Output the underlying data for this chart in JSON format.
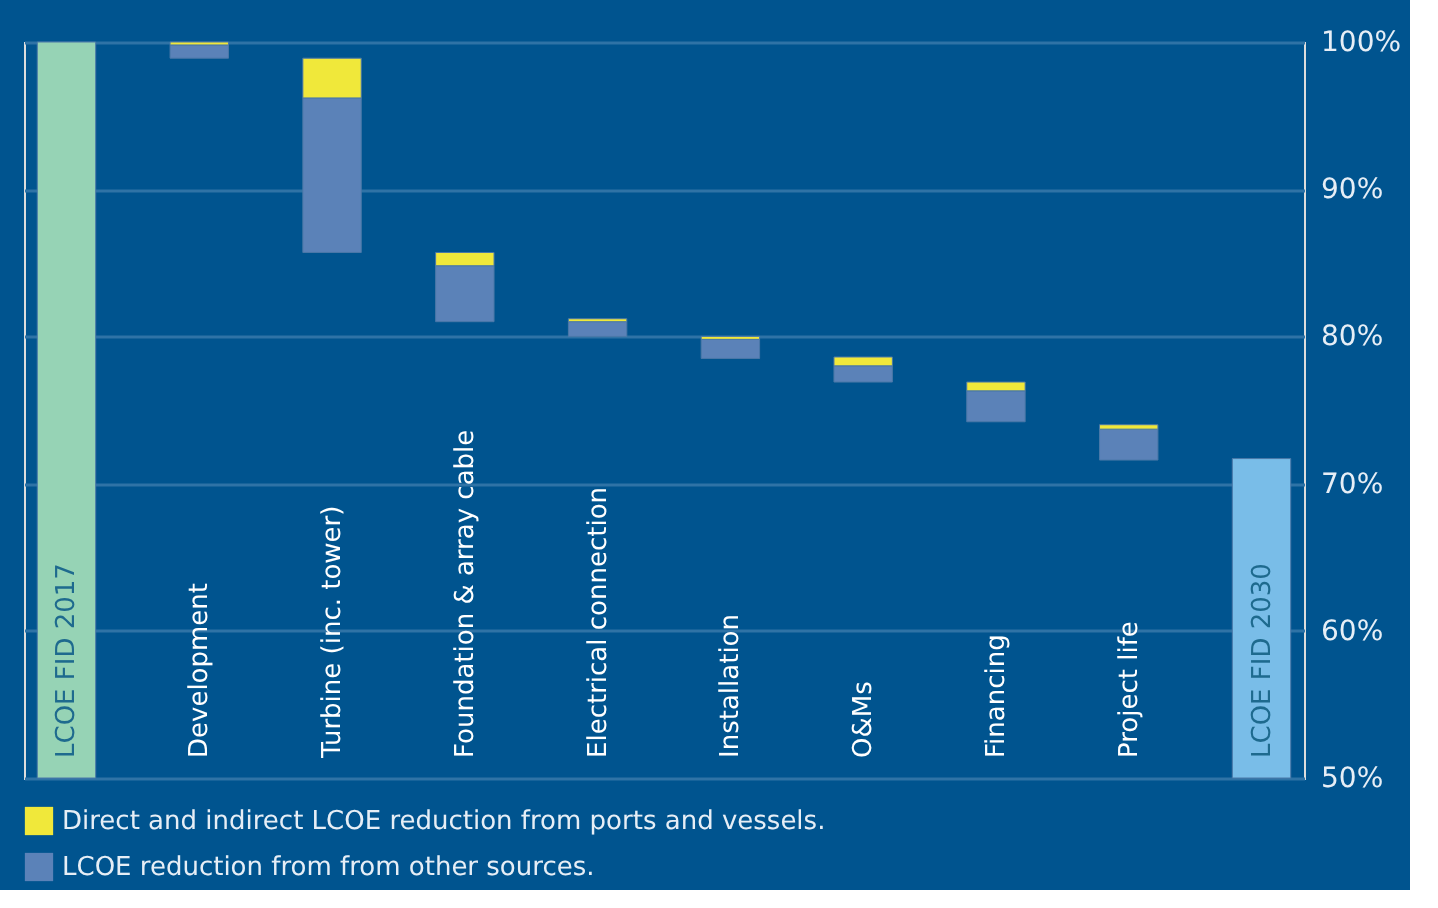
{
  "chart_data": {
    "type": "bar",
    "categories": [
      "LCOE FID 2017",
      "Development",
      "Turbine (inc. tower)",
      "Foundation & array cable",
      "Electrical connection",
      "Installation",
      "O&Ms",
      "Financing",
      "Project life",
      "LCOE FID 2030"
    ],
    "series": [
      {
        "colors": [
          "#96d3b5",
          null,
          null,
          null,
          null,
          null,
          null,
          null,
          null,
          "#79bde8"
        ],
        "base": [
          50,
          null,
          null,
          null,
          null,
          null,
          null,
          null,
          null,
          50
        ],
        "values": [
          50,
          null,
          null,
          null,
          null,
          null,
          null,
          null,
          null,
          21.7
        ]
      },
      {
        "name": "LCOE reduction from from other sources.",
        "color": "#5b82b8",
        "base": [
          null,
          98.9,
          85.7,
          81.0,
          80.0,
          78.5,
          76.9,
          74.2,
          71.6,
          null
        ],
        "values": [
          null,
          0.9,
          10.5,
          3.8,
          1.0,
          1.3,
          1.1,
          2.1,
          2.1,
          null
        ]
      },
      {
        "name": "Direct and indirect LCOE reduction from ports and vessels.",
        "color": "#f0e83a",
        "base": [
          null,
          99.8,
          96.2,
          84.8,
          81.0,
          79.8,
          78.0,
          76.3,
          73.7,
          null
        ],
        "values": [
          null,
          0.2,
          2.7,
          0.9,
          0.2,
          0.2,
          0.6,
          0.6,
          0.3,
          null
        ]
      }
    ],
    "ylim": [
      50,
      100
    ],
    "yticks": [
      {
        "value": 50,
        "label": "50%"
      },
      {
        "value": 60,
        "label": "60%"
      },
      {
        "value": 70,
        "label": "70%"
      },
      {
        "value": 80,
        "label": "80%"
      },
      {
        "value": 90,
        "label": "90%"
      },
      {
        "value": 100,
        "label": "100%"
      }
    ],
    "grid": "y",
    "legend": "bottom left"
  }
}
